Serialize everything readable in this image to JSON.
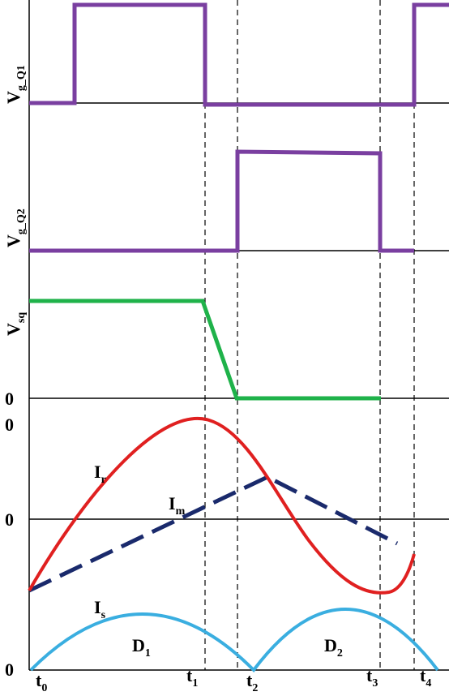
{
  "colors": {
    "gate_signal": "#7a3fa0",
    "v_sq": "#1fb24a",
    "i_r": "#e02020",
    "i_m": "#1a2a6c",
    "i_s": "#3aaee0",
    "axes": "#000000"
  },
  "labels": {
    "vg_q1": {
      "main": "V",
      "sub": "g_Q1"
    },
    "vg_q2": {
      "main": "V",
      "sub": "g_Q2"
    },
    "v_sq": {
      "main": "V",
      "sub": "sq"
    },
    "zero_vsq": "0",
    "zero_top_currents": "0",
    "zero_ir": "0",
    "zero_is": "0",
    "i_r": {
      "main": "I",
      "sub": "r"
    },
    "i_m": {
      "main": "I",
      "sub": "m"
    },
    "i_s": {
      "main": "I",
      "sub": "s"
    },
    "d1": {
      "main": "D",
      "sub": "1"
    },
    "d2": {
      "main": "D",
      "sub": "2"
    }
  },
  "time_markers": [
    {
      "main": "t",
      "sub": "0"
    },
    {
      "main": "t",
      "sub": "1"
    },
    {
      "main": "t",
      "sub": "2"
    },
    {
      "main": "t",
      "sub": "3"
    },
    {
      "main": "t",
      "sub": "4"
    }
  ]
}
